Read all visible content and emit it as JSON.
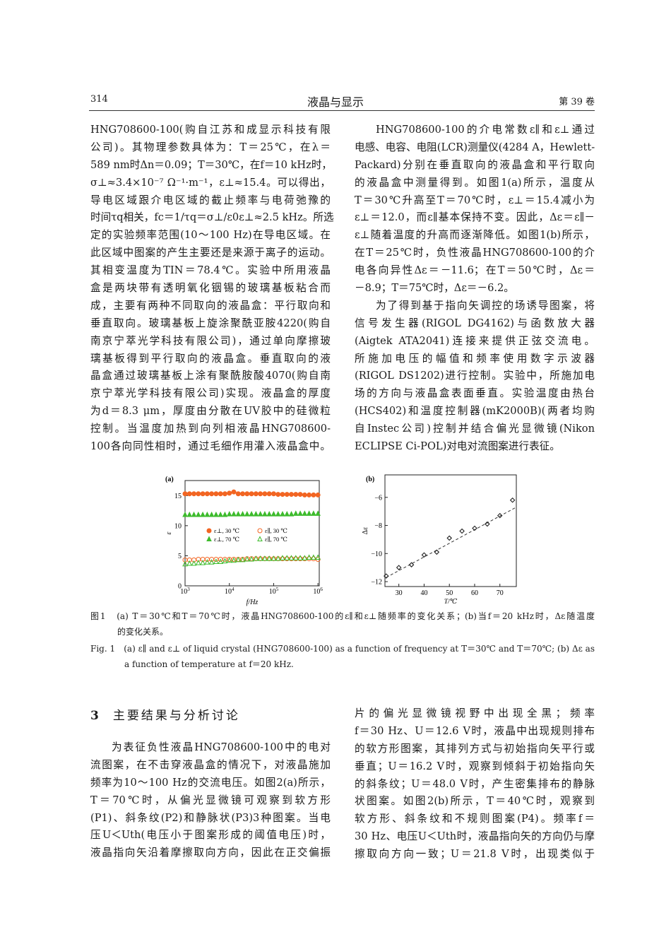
{
  "header": {
    "page_number": "314",
    "journal": "液晶与显示",
    "volume": "第 39 卷"
  },
  "top_left": {
    "lines": [
      "HNG708600-100(购自江苏和成显示科技有限",
      "公司)。其物理参数具体为：T＝25℃，在λ＝",
      "589 nm时Δn＝0.09；T＝30℃，在f＝10 kHz时，",
      "σ⊥≈3.4×10⁻⁷ Ω⁻¹·m⁻¹，ε⊥≈15.4。可以得出，",
      "导电区域跟介电区域的截止频率与电荷弛豫的",
      "时间τq相关，fc＝1/τq＝σ⊥/ε0ε⊥≈2.5 kHz。所选",
      "定的实验频率范围(10～100 Hz)在导电区域。在",
      "此区域中图案的产生主要还是来源于离子的运动。",
      "其相变温度为TIN＝78.4℃。实验中所用液晶",
      "盒是两块带有透明氧化铟锡的玻璃基板粘合而",
      "成，主要有两种不同取向的液晶盒：平行取向和",
      "垂直取向。玻璃基板上旋涂聚酰亚胺4220(购自",
      "南京宁萃光学科技有限公司)，通过单向摩擦玻",
      "璃基板得到平行取向的液晶盒。垂直取向的液",
      "晶盒通过玻璃基板上涂有聚酰胺酸4070(购自南",
      "京宁萃光学科技有限公司)实现。液晶盒的厚度",
      "为d＝8.3 μm，厚度由分散在UV胶中的硅微粒",
      "控制。当温度加热到向列相液晶HNG708600-",
      "100各向同性相时，通过毛细作用灌入液晶盒中。"
    ]
  },
  "top_right": {
    "paragraphs": [
      [
        "HNG708600-100的介电常数ε∥和ε⊥通过",
        "电感、电容、电阻(LCR)测量仪(4284 A，Hewlett-",
        "Packard)分别在垂直取向的液晶盒和平行取向",
        "的液晶盒中测量得到。如图1(a)所示，温度从",
        "T＝30℃升高至T＝70℃时，ε⊥＝15.4减小为",
        "ε⊥＝12.0，而ε∥基本保持不变。因此，Δε＝ε∥－",
        "ε⊥随着温度的升高而逐渐降低。如图1(b)所示，",
        "在T＝25℃时，负性液晶HNG708600-100的介",
        "电各向异性Δε＝－11.6；在T＝50℃时，Δε＝",
        "－8.9；T＝75℃时，Δε＝－6.2。"
      ],
      [
        "为了得到基于指向矢调控的场诱导图案，将",
        "信号发生器(RIGOL DG4162)与函数放大器",
        "(Aigtek ATA2041)连接来提供正弦交流电。",
        "所施加电压的幅值和频率使用数字示波器",
        "(RIGOL DS1202)进行控制。实验中，所施加电",
        "场的方向与液晶盒表面垂直。实验温度由热台",
        "(HCS402)和温度控制器(mK2000B)(两者均购",
        "自Instec公司)控制并结合偏光显微镜(Nikon",
        "ECLIPSE Ci-POL)对电对流图案进行表征。"
      ]
    ]
  },
  "figure": {
    "caption_cn": [
      "图1　(a) T＝30℃和T＝70℃时，液晶HNG708600-100的ε∥和ε⊥随频率的变化关系；(b)当f＝20 kHz时，Δε随温度",
      "的变化关系。"
    ],
    "caption_en": [
      "Fig. 1　(a) ε∥ and ε⊥ of liquid crystal (HNG708600-100) as a function of frequency at T＝30℃ and T＝70℃; (b) Δε as",
      "a function of temperature at f＝20 kHz."
    ]
  },
  "chart_data": [
    {
      "panel": "(a)",
      "type": "scatter",
      "xlabel": "f/Hz",
      "ylabel": "ε",
      "xscale": "log",
      "xlim": [
        1000,
        1070000
      ],
      "ylim": [
        0,
        17.5
      ],
      "xticks": [
        {
          "v": 1000,
          "b": "10",
          "e": "3"
        },
        {
          "v": 10000,
          "b": "10",
          "e": "4"
        },
        {
          "v": 100000,
          "b": "10",
          "e": "5"
        },
        {
          "v": 1000000,
          "b": "10",
          "e": "6"
        }
      ],
      "yticks": [
        0,
        5,
        10,
        15
      ],
      "legend": "center",
      "x": [
        1000,
        1259,
        1585,
        1995,
        2512,
        3162,
        3981,
        5012,
        6310,
        7943,
        10000,
        12589,
        15849,
        19953,
        25119,
        31623,
        39811,
        50119,
        63096,
        79433,
        100000,
        125893,
        158489,
        199526,
        251189,
        316228,
        398107,
        501187,
        630957,
        794328,
        1000000
      ],
      "series": [
        {
          "name": "ε⊥, 30 ℃",
          "color": "#f26522",
          "marker": "filled-circle",
          "values": [
            15.3,
            15.3,
            15.3,
            15.3,
            15.3,
            15.3,
            15.3,
            15.3,
            15.3,
            15.3,
            15.4,
            15.6,
            15.3,
            15.3,
            15.3,
            15.3,
            15.3,
            15.3,
            15.3,
            15.3,
            15.3,
            15.2,
            15.2,
            15.2,
            15.2,
            15.2,
            15.2,
            15.1,
            15.1,
            15.1,
            15.1
          ]
        },
        {
          "name": "ε⊥, 70 ℃",
          "color": "#3dbb2c",
          "marker": "filled-triangle",
          "values": [
            11.8,
            11.8,
            11.8,
            11.8,
            11.8,
            11.8,
            11.8,
            11.8,
            11.8,
            11.8,
            11.9,
            11.9,
            11.9,
            11.9,
            11.9,
            11.9,
            11.9,
            11.9,
            11.9,
            11.9,
            11.9,
            11.9,
            11.9,
            11.9,
            11.9,
            12.0,
            12.0,
            12.0,
            12.0,
            12.0,
            12.0
          ]
        },
        {
          "name": "ε∥, 30 ℃",
          "color": "#f26522",
          "marker": "open-circle",
          "values": [
            4.3,
            4.3,
            4.3,
            4.4,
            4.4,
            4.4,
            4.4,
            4.4,
            4.4,
            4.4,
            4.4,
            4.4,
            4.4,
            4.4,
            4.5,
            4.5,
            4.5,
            4.5,
            4.5,
            4.5,
            4.5,
            4.5,
            4.5,
            4.5,
            4.5,
            4.5,
            4.5,
            4.5,
            4.5,
            4.5,
            4.4
          ]
        },
        {
          "name": "ε∥, 70 ℃",
          "color": "#3dbb2c",
          "marker": "open-triangle",
          "values": [
            3.6,
            3.7,
            3.7,
            3.8,
            3.8,
            3.9,
            3.9,
            4.0,
            4.0,
            4.1,
            4.2,
            4.2,
            4.3,
            4.3,
            4.4,
            4.4,
            4.5,
            4.5,
            4.5,
            4.5,
            4.5,
            4.5,
            4.6,
            4.6,
            4.6,
            4.6,
            4.6,
            4.6,
            4.7,
            4.7,
            4.7
          ]
        }
      ]
    },
    {
      "panel": "(b)",
      "type": "scatter",
      "xlabel": "T/℃",
      "ylabel": "Δε",
      "xlim": [
        24.5,
        76.5
      ],
      "ylim": [
        -12.35,
        -4.4
      ],
      "xticks": [
        30,
        40,
        50,
        60,
        70
      ],
      "yticks": [
        -12,
        -10,
        -8,
        -6
      ],
      "x": [
        25,
        30,
        35,
        40,
        45,
        50,
        55,
        60,
        65,
        70,
        75
      ],
      "values": [
        -11.6,
        -11.0,
        -10.8,
        -10.1,
        -9.9,
        -8.9,
        -8.4,
        -8.2,
        -7.9,
        -7.3,
        -6.2
      ],
      "marker": "open-diamond",
      "color": "#222222",
      "fit_line": {
        "style": "dashed",
        "from": [
          25,
          -11.7
        ],
        "to": [
          76.5,
          -6.7
        ]
      }
    }
  ],
  "section": {
    "number": "3",
    "title": "主要结果与分析讨论"
  },
  "bottom_left": {
    "lines": [
      "为表征负性液晶HNG708600-100中的电对",
      "流图案，在不击穿液晶盒的情况下，对液晶施加",
      "频率为10～100 Hz的交流电压。如图2(a)所示，",
      "T＝70℃时，从偏光显微镜可观察到软方形",
      "(P1)、斜条纹(P2)和静脉状(P3)3种图案。当电",
      "压U＜Uth(电压小于图案形成的阈值电压)时，",
      "液晶指向矢沿着摩擦取向方向，因此在正交偏振"
    ]
  },
  "bottom_right": {
    "lines": [
      "片的偏光显微镜视野中出现全黑；频率",
      "f＝30 Hz、U＝12.6 V时，液晶中出现规则排布",
      "的软方形图案，其排列方式与初始指向矢平行或",
      "垂直；U＝16.2 V时，观察到倾斜于初始指向矢",
      "的斜条纹；U＝48.0 V时，产生密集排布的静脉",
      "状图案。如图2(b)所示，T＝40℃时，观察到",
      "软方形、斜条纹和不规则图案(P4)。频率f＝",
      "30 Hz、电压U＜Uth时，液晶指向矢的方向仍与摩",
      "擦取向方向一致；U＝21.8 V时，出现类似于"
    ]
  }
}
